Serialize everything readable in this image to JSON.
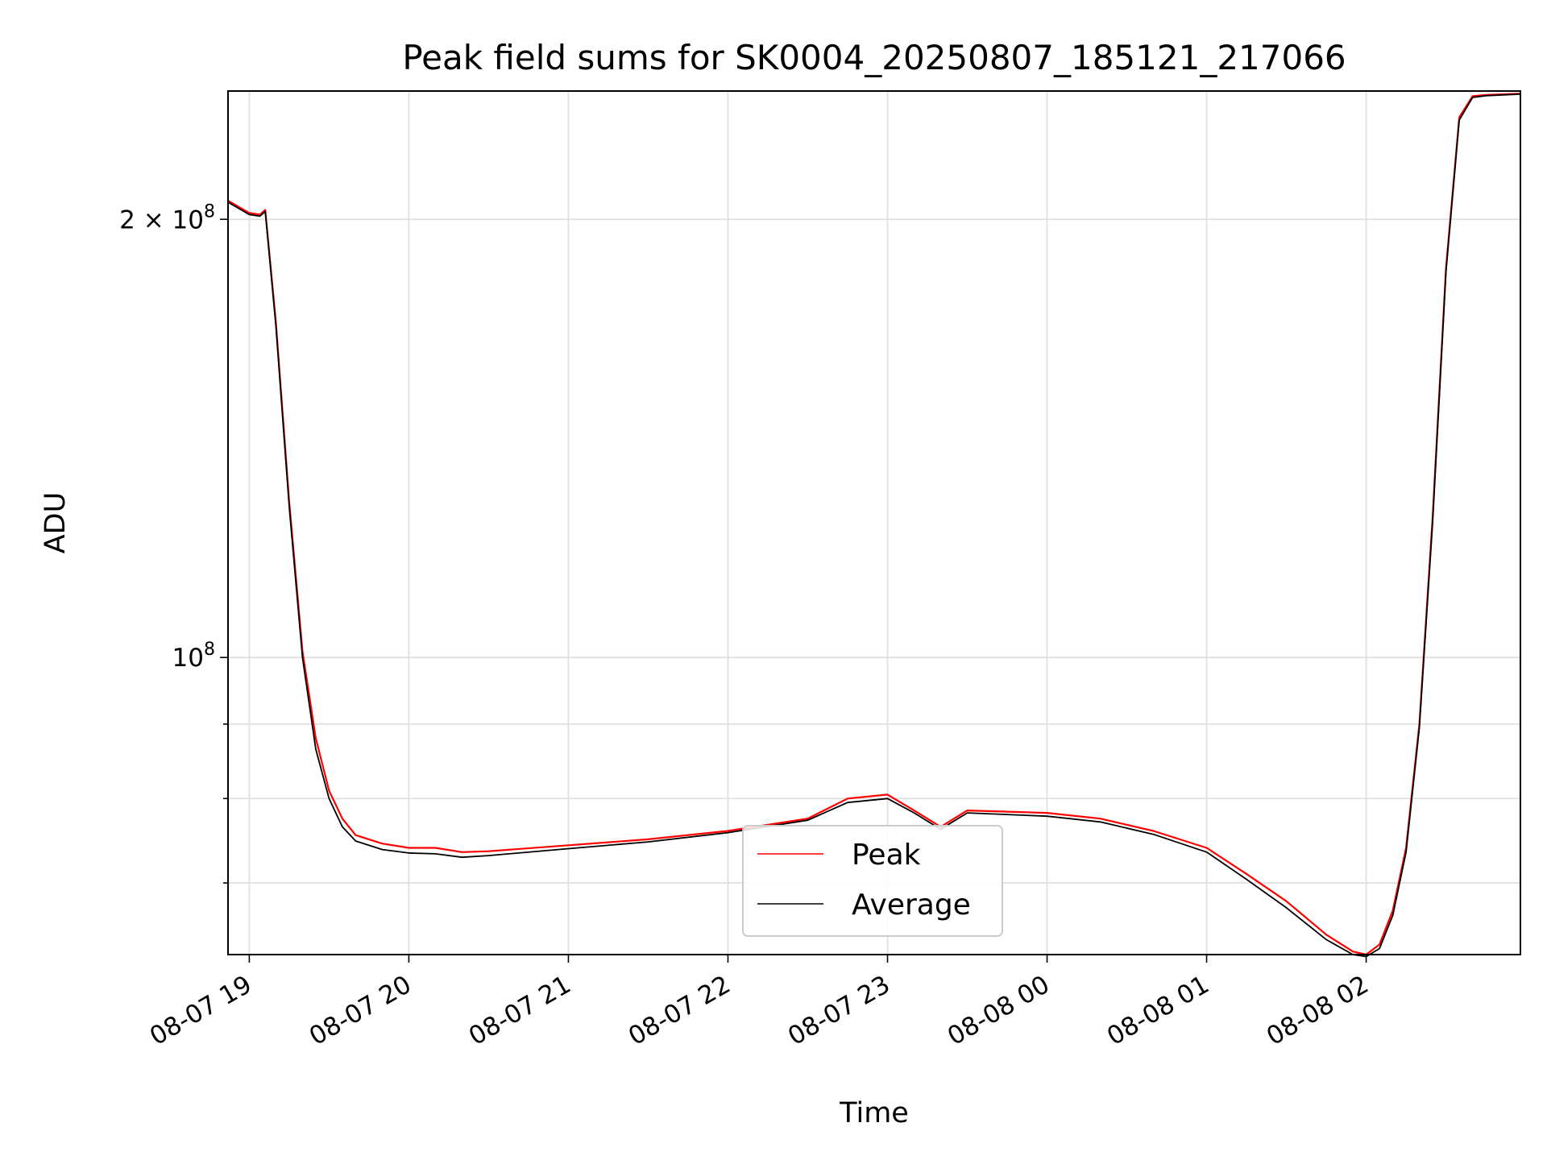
{
  "chart_data": {
    "type": "line",
    "title": "Peak field sums for SK0004_20250807_185121_217066",
    "xlabel": "Time",
    "ylabel": "ADU",
    "x_type": "datetime",
    "x_range": [
      "2025-08-07 18:52",
      "2025-08-08 02:58"
    ],
    "y_scale": "log",
    "ylim": [
      62500000,
      245000000
    ],
    "grid": true,
    "legend_position": "lower center",
    "x_ticks": [
      {
        "value": "2025-08-07 19:00",
        "label": "08-07 19"
      },
      {
        "value": "2025-08-07 20:00",
        "label": "08-07 20"
      },
      {
        "value": "2025-08-07 21:00",
        "label": "08-07 21"
      },
      {
        "value": "2025-08-07 22:00",
        "label": "08-07 22"
      },
      {
        "value": "2025-08-07 23:00",
        "label": "08-07 23"
      },
      {
        "value": "2025-08-08 00:00",
        "label": "08-08 00"
      },
      {
        "value": "2025-08-08 01:00",
        "label": "08-08 01"
      },
      {
        "value": "2025-08-08 02:00",
        "label": "08-08 02"
      }
    ],
    "y_major_ticks": [
      {
        "value": 100000000,
        "base": "10",
        "exp": "8",
        "mantissa": ""
      },
      {
        "value": 200000000,
        "base": "10",
        "exp": "8",
        "mantissa": "2 × "
      }
    ],
    "y_minor_ticks": [
      60000000,
      70000000,
      80000000,
      90000000
    ],
    "series": [
      {
        "name": "Peak",
        "color": "#ff0000",
        "x": [
          "2025-08-07 18:52",
          "2025-08-07 19:00",
          "2025-08-07 19:04",
          "2025-08-07 19:06",
          "2025-08-07 19:10",
          "2025-08-07 19:15",
          "2025-08-07 19:20",
          "2025-08-07 19:25",
          "2025-08-07 19:30",
          "2025-08-07 19:35",
          "2025-08-07 19:40",
          "2025-08-07 19:50",
          "2025-08-07 20:00",
          "2025-08-07 20:10",
          "2025-08-07 20:20",
          "2025-08-07 20:30",
          "2025-08-07 21:00",
          "2025-08-07 21:30",
          "2025-08-07 22:00",
          "2025-08-07 22:30",
          "2025-08-07 22:45",
          "2025-08-07 23:00",
          "2025-08-07 23:10",
          "2025-08-07 23:20",
          "2025-08-07 23:25",
          "2025-08-07 23:30",
          "2025-08-08 00:00",
          "2025-08-08 00:20",
          "2025-08-08 00:40",
          "2025-08-08 01:00",
          "2025-08-08 01:15",
          "2025-08-08 01:30",
          "2025-08-08 01:45",
          "2025-08-08 01:55",
          "2025-08-08 02:00",
          "2025-08-08 02:05",
          "2025-08-08 02:10",
          "2025-08-08 02:15",
          "2025-08-08 02:20",
          "2025-08-08 02:25",
          "2025-08-08 02:30",
          "2025-08-08 02:35",
          "2025-08-08 02:40",
          "2025-08-08 02:45",
          "2025-08-08 02:58"
        ],
        "values": [
          206000000,
          202000000,
          201500000,
          203000000,
          170000000,
          128000000,
          101000000,
          88000000,
          81000000,
          77500000,
          75500000,
          74500000,
          74000000,
          74000000,
          73500000,
          73600000,
          74300000,
          75000000,
          76000000,
          77500000,
          80000000,
          80500000,
          78500000,
          76500000,
          77500000,
          78500000,
          78200000,
          77500000,
          76000000,
          74000000,
          71000000,
          68000000,
          64500000,
          62800000,
          62500000,
          63500000,
          67000000,
          74000000,
          90000000,
          125000000,
          185000000,
          235000000,
          243000000,
          243500000,
          244000000
        ]
      },
      {
        "name": "Average",
        "color": "#000000",
        "x": [
          "2025-08-07 18:52",
          "2025-08-07 19:00",
          "2025-08-07 19:04",
          "2025-08-07 19:06",
          "2025-08-07 19:10",
          "2025-08-07 19:15",
          "2025-08-07 19:20",
          "2025-08-07 19:25",
          "2025-08-07 19:30",
          "2025-08-07 19:35",
          "2025-08-07 19:40",
          "2025-08-07 19:50",
          "2025-08-07 20:00",
          "2025-08-07 20:10",
          "2025-08-07 20:20",
          "2025-08-07 20:30",
          "2025-08-07 21:00",
          "2025-08-07 21:30",
          "2025-08-07 22:00",
          "2025-08-07 22:30",
          "2025-08-07 22:45",
          "2025-08-07 23:00",
          "2025-08-07 23:10",
          "2025-08-07 23:20",
          "2025-08-07 23:25",
          "2025-08-07 23:30",
          "2025-08-08 00:00",
          "2025-08-08 00:20",
          "2025-08-08 00:40",
          "2025-08-08 01:00",
          "2025-08-08 01:15",
          "2025-08-08 01:30",
          "2025-08-08 01:45",
          "2025-08-08 01:55",
          "2025-08-08 02:00",
          "2025-08-08 02:05",
          "2025-08-08 02:10",
          "2025-08-08 02:15",
          "2025-08-08 02:20",
          "2025-08-08 02:25",
          "2025-08-08 02:30",
          "2025-08-08 02:35",
          "2025-08-08 02:40",
          "2025-08-08 02:45",
          "2025-08-08 02:58"
        ],
        "values": [
          205500000,
          201500000,
          201000000,
          202500000,
          169000000,
          127000000,
          100000000,
          86500000,
          80000000,
          76500000,
          74800000,
          73800000,
          73400000,
          73300000,
          72900000,
          73100000,
          73900000,
          74700000,
          75800000,
          77300000,
          79500000,
          80000000,
          78200000,
          76200000,
          77200000,
          78200000,
          77800000,
          77100000,
          75600000,
          73500000,
          70400000,
          67300000,
          64000000,
          62500000,
          62300000,
          63100000,
          66500000,
          73500000,
          89500000,
          124000000,
          184000000,
          234000000,
          242500000,
          243200000,
          243800000
        ]
      }
    ]
  }
}
